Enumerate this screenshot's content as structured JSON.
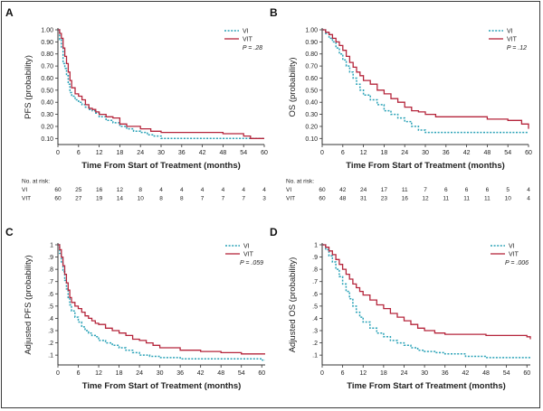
{
  "colors": {
    "vi": "#2aa2b7",
    "vit": "#b5253b",
    "axis": "#333333"
  },
  "risk_header": "No. at risk:",
  "chart_data": [
    {
      "panel": "A",
      "type": "line",
      "xlabel": "Time From Start of Treatment (months)",
      "ylabel": "PFS (probability)",
      "xlim": [
        0,
        60
      ],
      "ylim": [
        0.05,
        1.0
      ],
      "xticks": [
        0,
        6,
        12,
        18,
        24,
        30,
        36,
        42,
        48,
        54,
        60
      ],
      "yticks": [
        0.1,
        0.2,
        0.3,
        0.4,
        0.5,
        0.6,
        0.7,
        0.8,
        0.9,
        1.0
      ],
      "yticklabels": [
        "0.10",
        "0.20",
        "0.30",
        "0.40",
        "0.50",
        "0.60",
        "0.70",
        "0.80",
        "0.90",
        "1.00"
      ],
      "legend": [
        "VI",
        "VIT"
      ],
      "pvalue": "P = .28",
      "series": [
        {
          "name": "VI",
          "x": [
            0,
            0.5,
            1,
            1.5,
            2,
            2.5,
            3,
            3.5,
            4,
            5,
            6,
            7,
            8,
            9,
            10,
            11,
            12,
            14,
            16,
            18,
            20,
            22,
            24,
            26,
            28,
            30,
            36,
            42,
            48,
            54,
            60
          ],
          "y": [
            1.0,
            0.92,
            0.85,
            0.72,
            0.68,
            0.62,
            0.55,
            0.48,
            0.45,
            0.42,
            0.4,
            0.38,
            0.36,
            0.34,
            0.33,
            0.31,
            0.28,
            0.25,
            0.23,
            0.2,
            0.18,
            0.16,
            0.15,
            0.13,
            0.12,
            0.1,
            0.1,
            0.1,
            0.1,
            0.1,
            0.1
          ]
        },
        {
          "name": "VIT",
          "x": [
            0,
            0.5,
            1,
            1.5,
            2,
            2.5,
            3,
            3.5,
            4,
            5,
            6,
            7,
            8,
            9,
            10,
            11,
            12,
            14,
            16,
            18,
            20,
            24,
            27,
            30,
            36,
            42,
            48,
            54,
            56,
            60
          ],
          "y": [
            1.0,
            0.97,
            0.93,
            0.85,
            0.78,
            0.72,
            0.65,
            0.58,
            0.52,
            0.47,
            0.45,
            0.42,
            0.38,
            0.35,
            0.34,
            0.32,
            0.3,
            0.28,
            0.27,
            0.22,
            0.2,
            0.18,
            0.16,
            0.15,
            0.15,
            0.15,
            0.14,
            0.12,
            0.1,
            0.1
          ]
        }
      ],
      "risk_table": {
        "times": [
          0,
          6,
          12,
          18,
          24,
          30,
          36,
          42,
          48,
          54,
          60
        ],
        "rows": [
          {
            "label": "VI",
            "values": [
              "60",
              "25",
              "16",
              "12",
              "8",
              "4",
              "4",
              "4",
              "4",
              "4",
              "4"
            ]
          },
          {
            "label": "VIT",
            "values": [
              "60",
              "27",
              "19",
              "14",
              "10",
              "8",
              "8",
              "7",
              "7",
              "7",
              "3"
            ]
          }
        ]
      }
    },
    {
      "panel": "B",
      "type": "line",
      "xlabel": "Time From Start of Treatment (months)",
      "ylabel": "OS (probability)",
      "xlim": [
        0,
        60
      ],
      "ylim": [
        0.05,
        1.0
      ],
      "xticks": [
        0,
        6,
        12,
        18,
        24,
        30,
        36,
        42,
        48,
        54,
        60
      ],
      "yticks": [
        0.1,
        0.2,
        0.3,
        0.4,
        0.5,
        0.6,
        0.7,
        0.8,
        0.9,
        1.0
      ],
      "yticklabels": [
        "0.10",
        "0.20",
        "0.30",
        "0.40",
        "0.50",
        "0.60",
        "0.70",
        "0.80",
        "0.90",
        "1.00"
      ],
      "legend": [
        "VI",
        "VIT"
      ],
      "pvalue": "P = .12",
      "series": [
        {
          "name": "VI",
          "x": [
            0,
            1,
            2,
            3,
            4,
            5,
            6,
            7,
            8,
            9,
            10,
            11,
            12,
            14,
            16,
            18,
            20,
            22,
            24,
            26,
            28,
            30,
            36,
            42,
            48,
            54,
            60
          ],
          "y": [
            1.0,
            0.97,
            0.93,
            0.9,
            0.85,
            0.8,
            0.75,
            0.7,
            0.65,
            0.6,
            0.55,
            0.5,
            0.46,
            0.42,
            0.38,
            0.33,
            0.3,
            0.27,
            0.24,
            0.2,
            0.17,
            0.15,
            0.15,
            0.15,
            0.15,
            0.15,
            0.15
          ]
        },
        {
          "name": "VIT",
          "x": [
            0,
            1,
            2,
            3,
            4,
            5,
            6,
            7,
            8,
            9,
            10,
            11,
            12,
            14,
            16,
            18,
            20,
            22,
            24,
            26,
            28,
            30,
            33,
            36,
            42,
            48,
            54,
            58,
            60
          ],
          "y": [
            1.0,
            0.98,
            0.96,
            0.93,
            0.9,
            0.87,
            0.83,
            0.78,
            0.73,
            0.69,
            0.65,
            0.62,
            0.58,
            0.55,
            0.5,
            0.47,
            0.43,
            0.4,
            0.36,
            0.33,
            0.32,
            0.3,
            0.28,
            0.28,
            0.28,
            0.26,
            0.25,
            0.22,
            0.18
          ]
        }
      ],
      "risk_table": {
        "times": [
          0,
          6,
          12,
          18,
          24,
          30,
          36,
          42,
          48,
          54,
          60
        ],
        "rows": [
          {
            "label": "VI",
            "values": [
              "60",
              "42",
              "24",
              "17",
              "11",
              "7",
              "6",
              "6",
              "6",
              "5",
              "4"
            ]
          },
          {
            "label": "VIT",
            "values": [
              "60",
              "48",
              "31",
              "23",
              "16",
              "12",
              "11",
              "11",
              "11",
              "10",
              "4"
            ]
          }
        ]
      }
    },
    {
      "panel": "C",
      "type": "line",
      "xlabel": "Time From Start of Treatment (months)",
      "ylabel": "Adjusted PFS (probability)",
      "xlim": [
        0,
        61
      ],
      "ylim": [
        0.02,
        1.0
      ],
      "xticks": [
        0,
        6,
        12,
        18,
        24,
        30,
        36,
        42,
        48,
        54,
        60
      ],
      "yticks": [
        0.1,
        0.2,
        0.3,
        0.4,
        0.5,
        0.6,
        0.7,
        0.8,
        0.9,
        1.0
      ],
      "yticklabels": [
        ".1",
        ".2",
        ".3",
        ".4",
        ".5",
        ".6",
        ".7",
        ".8",
        ".9",
        "1"
      ],
      "legend": [
        "VI",
        "VIT"
      ],
      "pvalue": "P = .059",
      "series": [
        {
          "name": "VI",
          "x": [
            0,
            0.5,
            1,
            1.5,
            2,
            2.5,
            3,
            3.5,
            4,
            5,
            6,
            7,
            8,
            9,
            10,
            11,
            12,
            14,
            16,
            18,
            20,
            22,
            24,
            27,
            30,
            36,
            42,
            48,
            54,
            60,
            61
          ],
          "y": [
            1.0,
            0.93,
            0.86,
            0.78,
            0.71,
            0.64,
            0.57,
            0.51,
            0.46,
            0.41,
            0.37,
            0.33,
            0.3,
            0.28,
            0.26,
            0.25,
            0.22,
            0.2,
            0.18,
            0.16,
            0.14,
            0.12,
            0.1,
            0.09,
            0.08,
            0.07,
            0.07,
            0.07,
            0.07,
            0.06,
            0.06
          ]
        },
        {
          "name": "VIT",
          "x": [
            0,
            0.5,
            1,
            1.5,
            2,
            2.5,
            3,
            3.5,
            4,
            5,
            6,
            7,
            8,
            9,
            10,
            11,
            12,
            14,
            16,
            18,
            20,
            22,
            24,
            26,
            28,
            30,
            36,
            42,
            48,
            54,
            60,
            61
          ],
          "y": [
            1.0,
            0.96,
            0.9,
            0.83,
            0.76,
            0.69,
            0.63,
            0.57,
            0.53,
            0.5,
            0.48,
            0.45,
            0.42,
            0.4,
            0.38,
            0.36,
            0.35,
            0.32,
            0.3,
            0.28,
            0.26,
            0.23,
            0.22,
            0.2,
            0.18,
            0.16,
            0.14,
            0.13,
            0.12,
            0.11,
            0.11,
            0.11
          ]
        }
      ]
    },
    {
      "panel": "D",
      "type": "line",
      "xlabel": "Time From Start of Treatment (months)",
      "ylabel": "Adjusted OS (probability)",
      "xlim": [
        0,
        61
      ],
      "ylim": [
        0.02,
        1.0
      ],
      "xticks": [
        0,
        6,
        12,
        18,
        24,
        30,
        36,
        42,
        48,
        54,
        60
      ],
      "yticks": [
        0.1,
        0.2,
        0.3,
        0.4,
        0.5,
        0.6,
        0.7,
        0.8,
        0.9,
        1.0
      ],
      "yticklabels": [
        ".1",
        ".2",
        ".3",
        ".4",
        ".5",
        ".6",
        ".7",
        ".8",
        ".9",
        "1"
      ],
      "legend": [
        "VI",
        "VIT"
      ],
      "pvalue": "P = .006",
      "series": [
        {
          "name": "VI",
          "x": [
            0,
            1,
            2,
            3,
            4,
            5,
            6,
            7,
            8,
            9,
            10,
            11,
            12,
            14,
            16,
            18,
            20,
            22,
            24,
            26,
            28,
            30,
            33,
            36,
            42,
            48,
            54,
            60,
            61
          ],
          "y": [
            1.0,
            0.96,
            0.91,
            0.86,
            0.8,
            0.74,
            0.68,
            0.62,
            0.56,
            0.5,
            0.45,
            0.41,
            0.37,
            0.32,
            0.28,
            0.25,
            0.22,
            0.2,
            0.18,
            0.16,
            0.14,
            0.13,
            0.12,
            0.11,
            0.09,
            0.08,
            0.08,
            0.08,
            0.08
          ]
        },
        {
          "name": "VIT",
          "x": [
            0,
            1,
            2,
            3,
            4,
            5,
            6,
            7,
            8,
            9,
            10,
            11,
            12,
            14,
            16,
            18,
            20,
            22,
            24,
            26,
            28,
            30,
            33,
            36,
            42,
            48,
            54,
            60,
            61
          ],
          "y": [
            1.0,
            0.98,
            0.95,
            0.92,
            0.88,
            0.84,
            0.8,
            0.76,
            0.72,
            0.68,
            0.65,
            0.62,
            0.59,
            0.55,
            0.51,
            0.48,
            0.44,
            0.41,
            0.38,
            0.35,
            0.32,
            0.3,
            0.28,
            0.27,
            0.27,
            0.26,
            0.26,
            0.25,
            0.23
          ]
        }
      ]
    }
  ]
}
